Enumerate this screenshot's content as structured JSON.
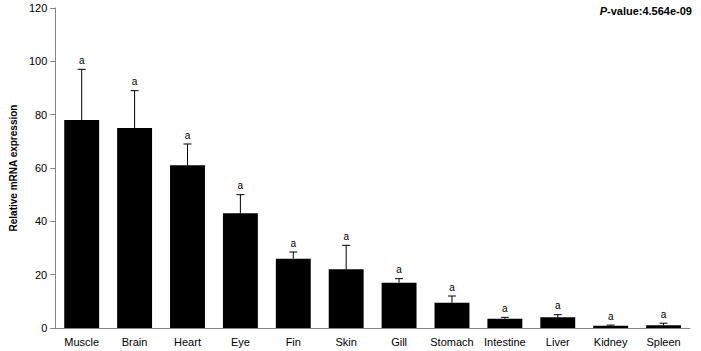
{
  "chart_data": {
    "type": "bar",
    "annotation": "P-value:4.564e-09",
    "y_label": "Relative mRNA expression",
    "categories": [
      "Muscle",
      "Brain",
      "Heart",
      "Eye",
      "Fin",
      "Skin",
      "Gill",
      "Stomach",
      "Intestine",
      "Liver",
      "Kidney",
      "Spleen"
    ],
    "values": [
      78,
      75,
      61,
      43,
      26,
      22,
      17,
      9.5,
      3.5,
      4,
      0.8,
      1.0
    ],
    "errors": [
      19,
      14,
      8,
      7,
      2.5,
      9,
      1.5,
      2.5,
      0.5,
      1,
      0.3,
      0.8
    ],
    "group_letters": [
      "a",
      "a",
      "a",
      "a",
      "a",
      "a",
      "a",
      "a",
      "a",
      "a",
      "a",
      "a"
    ],
    "color": "#000000",
    "ylim": [
      0,
      120
    ],
    "yticks": [
      0,
      20,
      40,
      60,
      80,
      100,
      120
    ],
    "grid": false
  }
}
